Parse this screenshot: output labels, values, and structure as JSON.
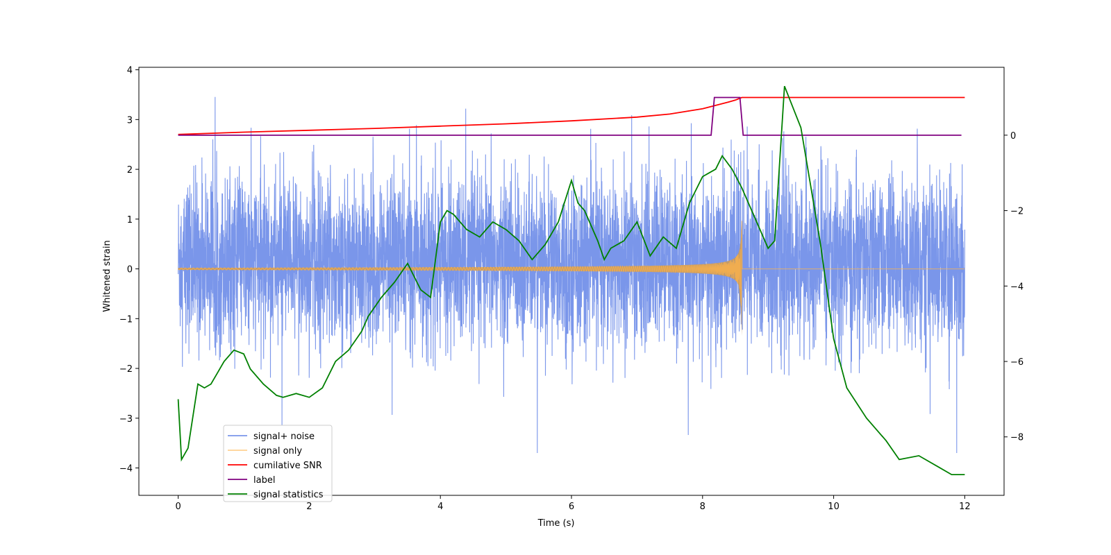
{
  "chart_data": {
    "type": "line",
    "title": "",
    "xlabel": "Time (s)",
    "ylabel": "Whitened strain",
    "y2label": "",
    "xlim": [
      -0.6,
      12.6
    ],
    "ylim": [
      -4.55,
      4.05
    ],
    "y2lim": [
      -9.55,
      1.8
    ],
    "xticks": [
      0,
      2,
      4,
      6,
      8,
      10,
      12
    ],
    "yticks": [
      -4,
      -3,
      -2,
      -1,
      0,
      1,
      2,
      3,
      4
    ],
    "y2ticks": [
      -8,
      -6,
      -4,
      -2,
      0
    ],
    "grid": false,
    "legend_position": "lower-left",
    "colors": {
      "noise": "#6b8be8",
      "signal": "#ffb347",
      "snr": "#ff0000",
      "label": "#800080",
      "stats": "#008000",
      "chirp_fill": "#c19a6b"
    },
    "series": [
      {
        "name": "signal+ noise",
        "axis": "left",
        "description": "whitened noise plus injected chirp, sampled over 0-12 s",
        "x_range": [
          0,
          12
        ],
        "envelope": [
          -3.7,
          3.65
        ],
        "typical_band": [
          -2.0,
          2.2
        ]
      },
      {
        "name": "signal only",
        "axis": "left",
        "x_range": [
          0,
          12
        ],
        "chirp_end": 8.6,
        "chirp_peak_amplitude": 1.0,
        "chirp_min": -1.35,
        "chirp_base_amplitude": 0.02
      },
      {
        "name": "cumilative SNR",
        "axis": "right",
        "x": [
          0,
          1,
          2,
          3,
          4,
          5,
          6,
          7,
          7.5,
          8,
          8.2,
          8.4,
          8.5,
          8.6,
          9,
          10,
          11,
          12
        ],
        "values": [
          0.02,
          0.08,
          0.13,
          0.18,
          0.24,
          0.3,
          0.38,
          0.48,
          0.56,
          0.7,
          0.79,
          0.88,
          0.93,
          1.0,
          1.0,
          1.0,
          1.0,
          1.0
        ]
      },
      {
        "name": "label",
        "axis": "right",
        "x": [
          0,
          8.13,
          8.18,
          8.57,
          8.62,
          11.95
        ],
        "values": [
          0,
          0,
          1,
          1,
          0,
          0
        ]
      },
      {
        "name": "signal statistics",
        "axis": "right",
        "x": [
          0,
          0.05,
          0.15,
          0.3,
          0.4,
          0.5,
          0.6,
          0.7,
          0.85,
          1.0,
          1.1,
          1.3,
          1.5,
          1.6,
          1.8,
          2.0,
          2.2,
          2.4,
          2.6,
          2.8,
          2.9,
          3.1,
          3.3,
          3.5,
          3.7,
          3.85,
          4.0,
          4.1,
          4.2,
          4.4,
          4.6,
          4.8,
          5.0,
          5.2,
          5.4,
          5.6,
          5.8,
          6.0,
          6.1,
          6.2,
          6.4,
          6.5,
          6.6,
          6.8,
          7.0,
          7.2,
          7.4,
          7.6,
          7.8,
          8.0,
          8.2,
          8.3,
          8.45,
          8.6,
          8.8,
          9.0,
          9.1,
          9.25,
          9.5,
          9.8,
          10.0,
          10.2,
          10.5,
          10.8,
          11.0,
          11.3,
          11.6,
          11.8,
          12.0
        ],
        "values": [
          -7.0,
          -8.6,
          -8.3,
          -6.6,
          -6.7,
          -6.6,
          -6.3,
          -6.0,
          -5.7,
          -5.8,
          -6.2,
          -6.6,
          -6.9,
          -6.95,
          -6.85,
          -6.95,
          -6.7,
          -6.0,
          -5.7,
          -5.2,
          -4.8,
          -4.3,
          -3.9,
          -3.4,
          -4.1,
          -4.3,
          -2.3,
          -2.0,
          -2.1,
          -2.5,
          -2.7,
          -2.3,
          -2.5,
          -2.8,
          -3.3,
          -2.9,
          -2.3,
          -1.2,
          -1.8,
          -2.0,
          -2.8,
          -3.3,
          -3.0,
          -2.8,
          -2.3,
          -3.2,
          -2.7,
          -3.0,
          -1.8,
          -1.1,
          -0.9,
          -0.55,
          -0.9,
          -1.4,
          -2.2,
          -3.0,
          -2.8,
          1.3,
          0.2,
          -2.9,
          -5.4,
          -6.7,
          -7.5,
          -8.1,
          -8.6,
          -8.5,
          -8.8,
          -9.0,
          -9.0
        ]
      }
    ]
  }
}
